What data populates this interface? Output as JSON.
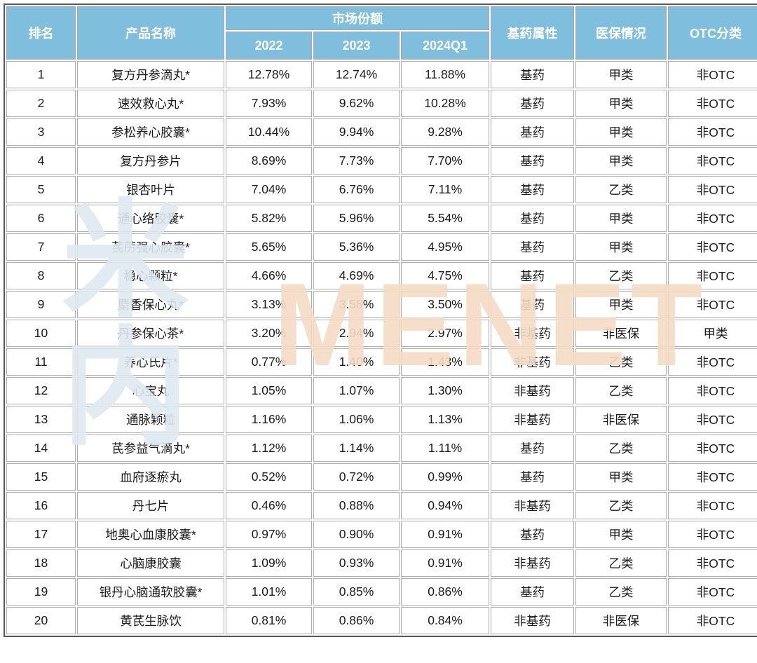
{
  "table": {
    "header": {
      "rank": "排名",
      "product": "产品名称",
      "market_share": "市场份额",
      "col_2022": "2022",
      "col_2023": "2023",
      "col_2024q1": "2024Q1",
      "essential_drug": "基药属性",
      "insurance": "医保情况",
      "otc": "OTC分类"
    },
    "rows": [
      {
        "rank": "1",
        "product": "复方丹参滴丸*",
        "s2022": "12.78%",
        "s2023": "12.74%",
        "s2024q1": "11.88%",
        "essential": "基药",
        "insurance": "甲类",
        "otc": "非OTC"
      },
      {
        "rank": "2",
        "product": "速效救心丸*",
        "s2022": "7.93%",
        "s2023": "9.62%",
        "s2024q1": "10.28%",
        "essential": "基药",
        "insurance": "甲类",
        "otc": "非OTC"
      },
      {
        "rank": "3",
        "product": "参松养心胶囊*",
        "s2022": "10.44%",
        "s2023": "9.94%",
        "s2024q1": "9.28%",
        "essential": "基药",
        "insurance": "甲类",
        "otc": "非OTC"
      },
      {
        "rank": "4",
        "product": "复方丹参片",
        "s2022": "8.69%",
        "s2023": "7.73%",
        "s2024q1": "7.70%",
        "essential": "基药",
        "insurance": "甲类",
        "otc": "非OTC"
      },
      {
        "rank": "5",
        "product": "银杏叶片",
        "s2022": "7.04%",
        "s2023": "6.76%",
        "s2024q1": "7.11%",
        "essential": "基药",
        "insurance": "乙类",
        "otc": "非OTC"
      },
      {
        "rank": "6",
        "product": "通心络胶囊*",
        "s2022": "5.82%",
        "s2023": "5.96%",
        "s2024q1": "5.54%",
        "essential": "基药",
        "insurance": "甲类",
        "otc": "非OTC"
      },
      {
        "rank": "7",
        "product": "芪苈强心胶囊*",
        "s2022": "5.65%",
        "s2023": "5.36%",
        "s2024q1": "4.95%",
        "essential": "基药",
        "insurance": "甲类",
        "otc": "非OTC"
      },
      {
        "rank": "8",
        "product": "稳心颗粒*",
        "s2022": "4.66%",
        "s2023": "4.69%",
        "s2024q1": "4.75%",
        "essential": "基药",
        "insurance": "乙类",
        "otc": "非OTC"
      },
      {
        "rank": "9",
        "product": "麝香保心丸*",
        "s2022": "3.13%",
        "s2023": "3.58%",
        "s2024q1": "3.50%",
        "essential": "基药",
        "insurance": "甲类",
        "otc": "非OTC"
      },
      {
        "rank": "10",
        "product": "丹参保心茶*",
        "s2022": "3.20%",
        "s2023": "2.94%",
        "s2024q1": "2.97%",
        "essential": "非基药",
        "insurance": "非医保",
        "otc": "甲类"
      },
      {
        "rank": "11",
        "product": "养心氏片*",
        "s2022": "0.77%",
        "s2023": "1.40%",
        "s2024q1": "1.43%",
        "essential": "非基药",
        "insurance": "乙类",
        "otc": "非OTC"
      },
      {
        "rank": "12",
        "product": "心宝丸",
        "s2022": "1.05%",
        "s2023": "1.07%",
        "s2024q1": "1.30%",
        "essential": "非基药",
        "insurance": "乙类",
        "otc": "非OTC"
      },
      {
        "rank": "13",
        "product": "通脉颗粒",
        "s2022": "1.16%",
        "s2023": "1.06%",
        "s2024q1": "1.13%",
        "essential": "非基药",
        "insurance": "非医保",
        "otc": "非OTC"
      },
      {
        "rank": "14",
        "product": "芪参益气滴丸*",
        "s2022": "1.12%",
        "s2023": "1.14%",
        "s2024q1": "1.11%",
        "essential": "基药",
        "insurance": "乙类",
        "otc": "非OTC"
      },
      {
        "rank": "15",
        "product": "血府逐瘀丸",
        "s2022": "0.52%",
        "s2023": "0.72%",
        "s2024q1": "0.99%",
        "essential": "基药",
        "insurance": "甲类",
        "otc": "非OTC"
      },
      {
        "rank": "16",
        "product": "丹七片",
        "s2022": "0.46%",
        "s2023": "0.88%",
        "s2024q1": "0.94%",
        "essential": "非基药",
        "insurance": "乙类",
        "otc": "非OTC"
      },
      {
        "rank": "17",
        "product": "地奥心血康胶囊*",
        "s2022": "0.97%",
        "s2023": "0.90%",
        "s2024q1": "0.91%",
        "essential": "基药",
        "insurance": "甲类",
        "otc": "非OTC"
      },
      {
        "rank": "18",
        "product": "心脑康胶囊",
        "s2022": "1.09%",
        "s2023": "0.93%",
        "s2024q1": "0.91%",
        "essential": "非基药",
        "insurance": "乙类",
        "otc": "非OTC"
      },
      {
        "rank": "19",
        "product": "银丹心脑通软胶囊*",
        "s2022": "1.01%",
        "s2023": "0.85%",
        "s2024q1": "0.86%",
        "essential": "基药",
        "insurance": "乙类",
        "otc": "非OTC"
      },
      {
        "rank": "20",
        "product": "黄芪生脉饮",
        "s2022": "0.81%",
        "s2023": "0.86%",
        "s2024q1": "0.84%",
        "essential": "非基药",
        "insurance": "非医保",
        "otc": "非OTC"
      }
    ]
  },
  "watermark": {
    "cn": "米内",
    "en": "MENET"
  },
  "colors": {
    "header_bg": "#7FBEDC",
    "header_text": "#FFFFFF",
    "outer_border": "#595959",
    "cell_border": "#ADADAD",
    "watermark_cn": "#DEE9F0",
    "watermark_en": "#F6DCC5"
  }
}
